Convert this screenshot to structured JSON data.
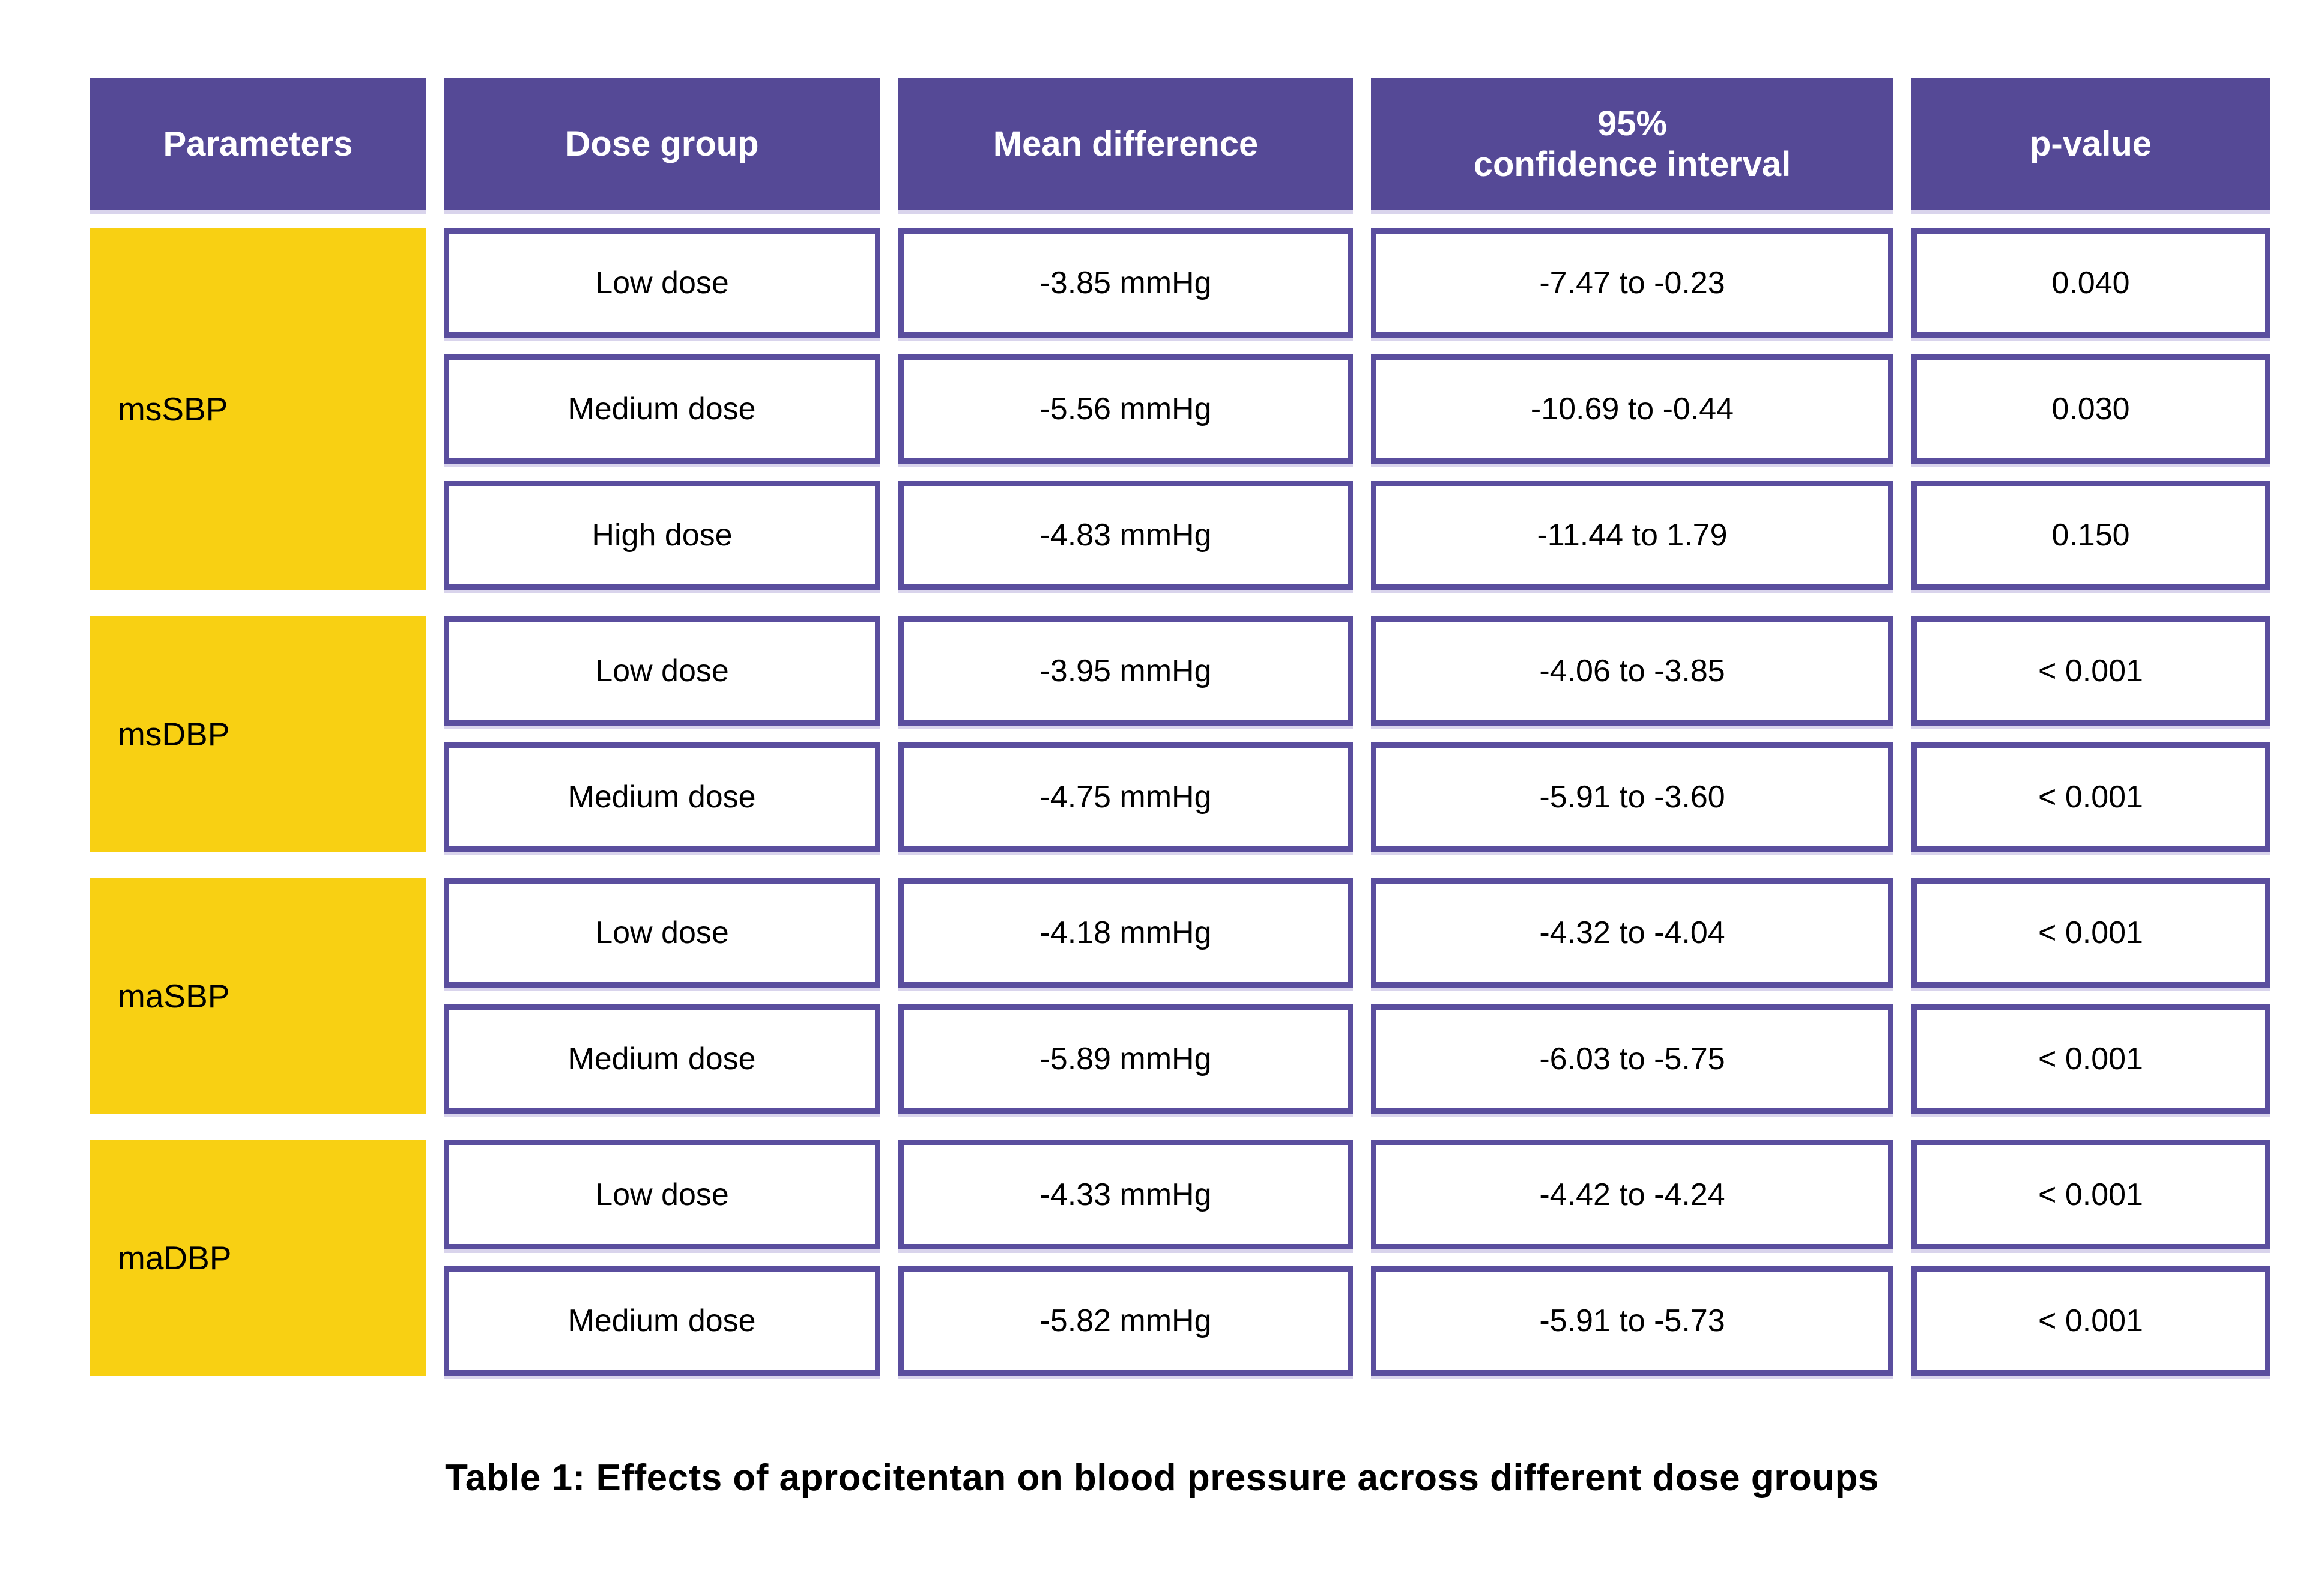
{
  "table": {
    "headers": [
      "Parameters",
      "Dose group",
      "Mean difference",
      "95% confidence interval",
      "p-value"
    ],
    "ci_header_lines": [
      "95%",
      "confidence interval"
    ],
    "groups": [
      {
        "label": "msSBP",
        "row_count": 3
      },
      {
        "label": "msDBP",
        "row_count": 2
      },
      {
        "label": "maSBP",
        "row_count": 2
      },
      {
        "label": "maDBP",
        "row_count": 2
      }
    ],
    "rows": [
      {
        "param": "msSBP",
        "dose": "Low dose",
        "mean_difference": "-3.85 mmHg",
        "ci_95": "-7.47 to -0.23",
        "p_value": "0.040"
      },
      {
        "param": "msSBP",
        "dose": "Medium dose",
        "mean_difference": "-5.56 mmHg",
        "ci_95": "-10.69 to -0.44",
        "p_value": "0.030"
      },
      {
        "param": "msSBP",
        "dose": "High dose",
        "mean_difference": "-4.83 mmHg",
        "ci_95": "-11.44 to 1.79",
        "p_value": "0.150"
      },
      {
        "param": "msDBP",
        "dose": "Low dose",
        "mean_difference": "-3.95 mmHg",
        "ci_95": "-4.06 to -3.85",
        "p_value": "< 0.001"
      },
      {
        "param": "msDBP",
        "dose": "Medium dose",
        "mean_difference": "-4.75 mmHg",
        "ci_95": "-5.91 to -3.60",
        "p_value": "< 0.001"
      },
      {
        "param": "maSBP",
        "dose": "Low dose",
        "mean_difference": "-4.18 mmHg",
        "ci_95": "-4.32 to -4.04",
        "p_value": "< 0.001"
      },
      {
        "param": "maSBP",
        "dose": "Medium dose",
        "mean_difference": "-5.89 mmHg",
        "ci_95": "-6.03 to -5.75",
        "p_value": "< 0.001"
      },
      {
        "param": "maDBP",
        "dose": "Low dose",
        "mean_difference": "-4.33 mmHg",
        "ci_95": "-4.42 to -4.24",
        "p_value": "< 0.001"
      },
      {
        "param": "maDBP",
        "dose": "Medium dose",
        "mean_difference": "-5.82 mmHg",
        "ci_95": "-5.91 to -5.73",
        "p_value": "< 0.001"
      }
    ]
  },
  "caption": "Table 1: Effects of aprocitentan on blood pressure across different dose groups",
  "colors": {
    "header_purple": "#554996",
    "cell_border_purple": "#5A4E9E",
    "param_yellow": "#F8D013",
    "header_text": "#FFFFFF",
    "body_text": "#000000",
    "background": "#FFFFFF"
  },
  "chart_data": {
    "type": "table",
    "title": "Table 1: Effects of aprocitentan on blood pressure across different dose groups",
    "columns": [
      "Parameters",
      "Dose group",
      "Mean difference",
      "95% confidence interval",
      "p-value"
    ],
    "rows": [
      [
        "msSBP",
        "Low dose",
        "-3.85 mmHg",
        "-7.47 to -0.23",
        "0.040"
      ],
      [
        "msSBP",
        "Medium dose",
        "-5.56 mmHg",
        "-10.69 to -0.44",
        "0.030"
      ],
      [
        "msSBP",
        "High dose",
        "-4.83 mmHg",
        "-11.44 to 1.79",
        "0.150"
      ],
      [
        "msDBP",
        "Low dose",
        "-3.95 mmHg",
        "-4.06 to -3.85",
        "< 0.001"
      ],
      [
        "msDBP",
        "Medium dose",
        "-4.75 mmHg",
        "-5.91 to -3.60",
        "< 0.001"
      ],
      [
        "maSBP",
        "Low dose",
        "-4.18 mmHg",
        "-4.32 to -4.04",
        "< 0.001"
      ],
      [
        "maSBP",
        "Medium dose",
        "-5.89 mmHg",
        "-6.03 to -5.75",
        "< 0.001"
      ],
      [
        "maDBP",
        "Low dose",
        "-4.33 mmHg",
        "-4.42 to -4.24",
        "< 0.001"
      ],
      [
        "maDBP",
        "Medium dose",
        "-5.82 mmHg",
        "-5.91 to -5.73",
        "< 0.001"
      ]
    ]
  }
}
